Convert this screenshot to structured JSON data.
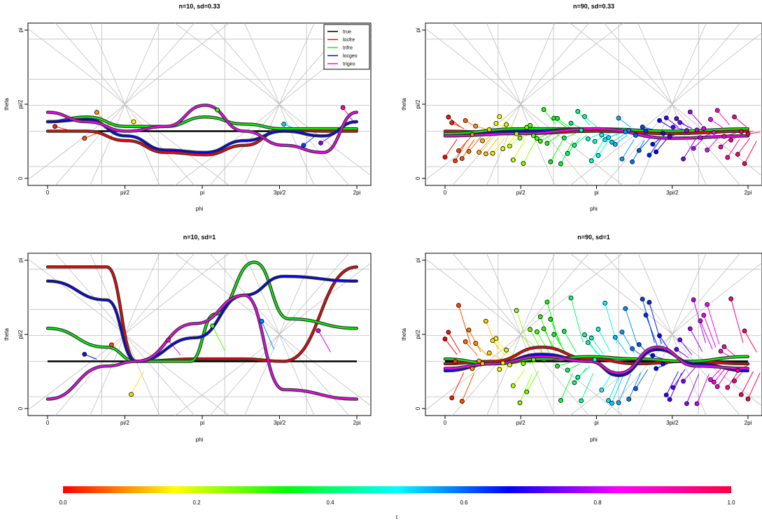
{
  "chart_data": [
    {
      "type": "line",
      "title": "n=10, sd=0.33",
      "xlabel": "phi",
      "ylabel": "theta",
      "x_ticks": [
        "0",
        "pi/2",
        "pi",
        "3pi/2",
        "2pi"
      ],
      "y_ticks": [
        "0",
        "pi/2",
        "pi"
      ],
      "xlim": [
        0,
        6.2832
      ],
      "ylim": [
        0,
        3.1416
      ],
      "grid": "spherical graticule",
      "legend": {
        "position": "top-right",
        "entries": [
          {
            "name": "true",
            "color": "#000000"
          },
          {
            "name": "locfre",
            "color": "#ff0000"
          },
          {
            "name": "trifre",
            "color": "#00ff00"
          },
          {
            "name": "locgeo",
            "color": "#0000ff"
          },
          {
            "name": "trigeo",
            "color": "#ff00ff"
          }
        ]
      },
      "true_theta": 1.0,
      "points": [
        {
          "phi": 0.15,
          "theta": 1.1,
          "t": 0.02
        },
        {
          "phi": 0.75,
          "theta": 0.85,
          "t": 0.05
        },
        {
          "phi": 1.0,
          "theta": 1.4,
          "t": 0.1
        },
        {
          "phi": 1.75,
          "theta": 1.2,
          "t": 0.18
        },
        {
          "phi": 3.45,
          "theta": 1.45,
          "t": 0.32
        },
        {
          "phi": 4.8,
          "theta": 1.15,
          "t": 0.55
        },
        {
          "phi": 5.2,
          "theta": 0.7,
          "t": 0.65
        },
        {
          "phi": 5.55,
          "theta": 0.75,
          "t": 0.78
        },
        {
          "phi": 6.0,
          "theta": 1.5,
          "t": 0.92
        }
      ],
      "series": [
        {
          "name": "locfre",
          "x": [
            0.0,
            0.8,
            1.6,
            2.4,
            3.2,
            4.0,
            4.8,
            5.6,
            6.28
          ],
          "y": [
            1.0,
            1.0,
            0.8,
            0.55,
            0.5,
            0.7,
            1.05,
            1.0,
            1.0
          ]
        },
        {
          "name": "trifre",
          "x": [
            0.0,
            0.8,
            1.6,
            2.4,
            3.2,
            4.0,
            4.8,
            5.6,
            6.28
          ],
          "y": [
            1.2,
            1.3,
            1.1,
            1.1,
            1.3,
            1.15,
            1.05,
            1.05,
            1.05
          ]
        },
        {
          "name": "locgeo",
          "x": [
            0.0,
            0.8,
            1.6,
            2.4,
            3.2,
            4.0,
            4.8,
            5.6,
            6.28
          ],
          "y": [
            1.2,
            1.25,
            0.9,
            0.6,
            0.55,
            0.8,
            1.0,
            0.9,
            1.2
          ]
        },
        {
          "name": "trigeo",
          "x": [
            0.0,
            0.8,
            1.6,
            2.4,
            3.2,
            4.0,
            4.8,
            5.6,
            6.28
          ],
          "y": [
            1.4,
            1.2,
            1.0,
            1.1,
            1.55,
            1.0,
            0.7,
            0.55,
            1.4
          ]
        }
      ]
    },
    {
      "type": "line",
      "title": "n=90, sd=0.33",
      "xlabel": "phi",
      "ylabel": "theta",
      "x_ticks": [
        "0",
        "pi/2",
        "pi",
        "3pi/2",
        "2pi"
      ],
      "y_ticks": [
        "0",
        "pi/2",
        "pi"
      ],
      "xlim": [
        0,
        6.2832
      ],
      "ylim": [
        0,
        3.1416
      ],
      "grid": "spherical graticule",
      "true_theta": 1.0,
      "points_n": 90,
      "points_theta_range": [
        0.3,
        1.5
      ],
      "series": [
        {
          "name": "locfre",
          "x": [
            0.0,
            1.57,
            3.14,
            4.71,
            6.28
          ],
          "y": [
            1.0,
            0.95,
            1.0,
            0.95,
            1.0
          ]
        },
        {
          "name": "trifre",
          "x": [
            0.0,
            1.57,
            3.14,
            4.71,
            6.28
          ],
          "y": [
            0.95,
            1.05,
            1.05,
            1.0,
            1.05
          ]
        },
        {
          "name": "locgeo",
          "x": [
            0.0,
            1.57,
            3.14,
            4.71,
            6.28
          ],
          "y": [
            0.9,
            1.0,
            1.05,
            0.85,
            0.9
          ]
        },
        {
          "name": "trigeo",
          "x": [
            0.0,
            1.57,
            3.14,
            4.71,
            6.28
          ],
          "y": [
            0.9,
            0.95,
            1.05,
            0.85,
            0.9
          ]
        }
      ]
    },
    {
      "type": "line",
      "title": "n=10, sd=1",
      "xlabel": "phi",
      "ylabel": "theta",
      "x_ticks": [
        "0",
        "pi/2",
        "pi",
        "3pi/2",
        "2pi"
      ],
      "y_ticks": [
        "0",
        "pi/2",
        "pi"
      ],
      "xlim": [
        0,
        6.2832
      ],
      "ylim": [
        0,
        3.1416
      ],
      "grid": "spherical graticule",
      "true_theta": 1.0,
      "points": [
        {
          "phi": 0.75,
          "theta": 1.15,
          "t": 0.68
        },
        {
          "phi": 1.3,
          "theta": 1.35,
          "t": 0.05
        },
        {
          "phi": 1.7,
          "theta": 0.3,
          "t": 0.15
        },
        {
          "phi": 2.45,
          "theta": 1.45,
          "t": 0.9
        },
        {
          "phi": 3.35,
          "theta": 1.75,
          "t": 0.3
        },
        {
          "phi": 4.35,
          "theta": 1.85,
          "t": 0.6
        },
        {
          "phi": 5.5,
          "theta": 1.65,
          "t": 0.85
        }
      ],
      "series": [
        {
          "name": "locfre",
          "x": [
            0.0,
            1.2,
            1.8,
            3.0,
            4.0,
            4.8,
            6.28
          ],
          "y": [
            3.0,
            3.0,
            1.0,
            1.05,
            1.05,
            1.0,
            3.0
          ]
        },
        {
          "name": "trifre",
          "x": [
            0.0,
            1.2,
            1.8,
            2.9,
            3.4,
            4.2,
            4.9,
            6.28
          ],
          "y": [
            1.7,
            1.3,
            1.0,
            1.0,
            2.0,
            3.1,
            1.9,
            1.7
          ]
        },
        {
          "name": "locgeo",
          "x": [
            0.0,
            1.2,
            1.8,
            3.0,
            4.0,
            4.8,
            6.28
          ],
          "y": [
            2.7,
            2.3,
            1.0,
            1.5,
            2.4,
            2.8,
            2.7
          ]
        },
        {
          "name": "trigeo",
          "x": [
            0.0,
            1.2,
            1.8,
            3.0,
            4.0,
            4.8,
            6.28
          ],
          "y": [
            0.2,
            0.9,
            1.0,
            1.8,
            2.4,
            0.4,
            0.2
          ]
        }
      ]
    },
    {
      "type": "line",
      "title": "n=90, sd=1",
      "xlabel": "phi",
      "ylabel": "theta",
      "x_ticks": [
        "0",
        "pi/2",
        "pi",
        "3pi/2",
        "2pi"
      ],
      "y_ticks": [
        "0",
        "pi/2",
        "pi"
      ],
      "xlim": [
        0,
        6.2832
      ],
      "ylim": [
        0,
        3.1416
      ],
      "grid": "spherical graticule",
      "true_theta": 1.0,
      "points_n": 90,
      "points_theta_range": [
        0.1,
        2.4
      ],
      "series": [
        {
          "name": "locfre",
          "x": [
            0.0,
            1.0,
            2.0,
            3.0,
            4.0,
            5.0,
            6.28
          ],
          "y": [
            0.95,
            1.0,
            1.3,
            1.05,
            0.95,
            1.0,
            0.95
          ]
        },
        {
          "name": "trifre",
          "x": [
            0.0,
            1.0,
            2.0,
            3.0,
            4.0,
            5.0,
            6.28
          ],
          "y": [
            1.05,
            0.95,
            1.05,
            1.1,
            1.05,
            1.0,
            1.1
          ]
        },
        {
          "name": "locgeo",
          "x": [
            0.0,
            1.0,
            2.0,
            3.0,
            3.6,
            4.4,
            5.2,
            6.28
          ],
          "y": [
            0.8,
            0.95,
            1.15,
            1.0,
            0.7,
            1.25,
            0.95,
            0.8
          ]
        },
        {
          "name": "trigeo",
          "x": [
            0.0,
            1.0,
            2.0,
            3.0,
            3.6,
            4.4,
            5.2,
            6.28
          ],
          "y": [
            0.85,
            0.95,
            1.1,
            1.0,
            0.75,
            1.3,
            0.9,
            0.85
          ]
        }
      ]
    }
  ],
  "colorbar": {
    "label": "t",
    "ticks": [
      "0.0",
      "0.2",
      "0.4",
      "0.6",
      "0.8",
      "1.0"
    ],
    "range": [
      0,
      1
    ],
    "palette": "rainbow"
  }
}
